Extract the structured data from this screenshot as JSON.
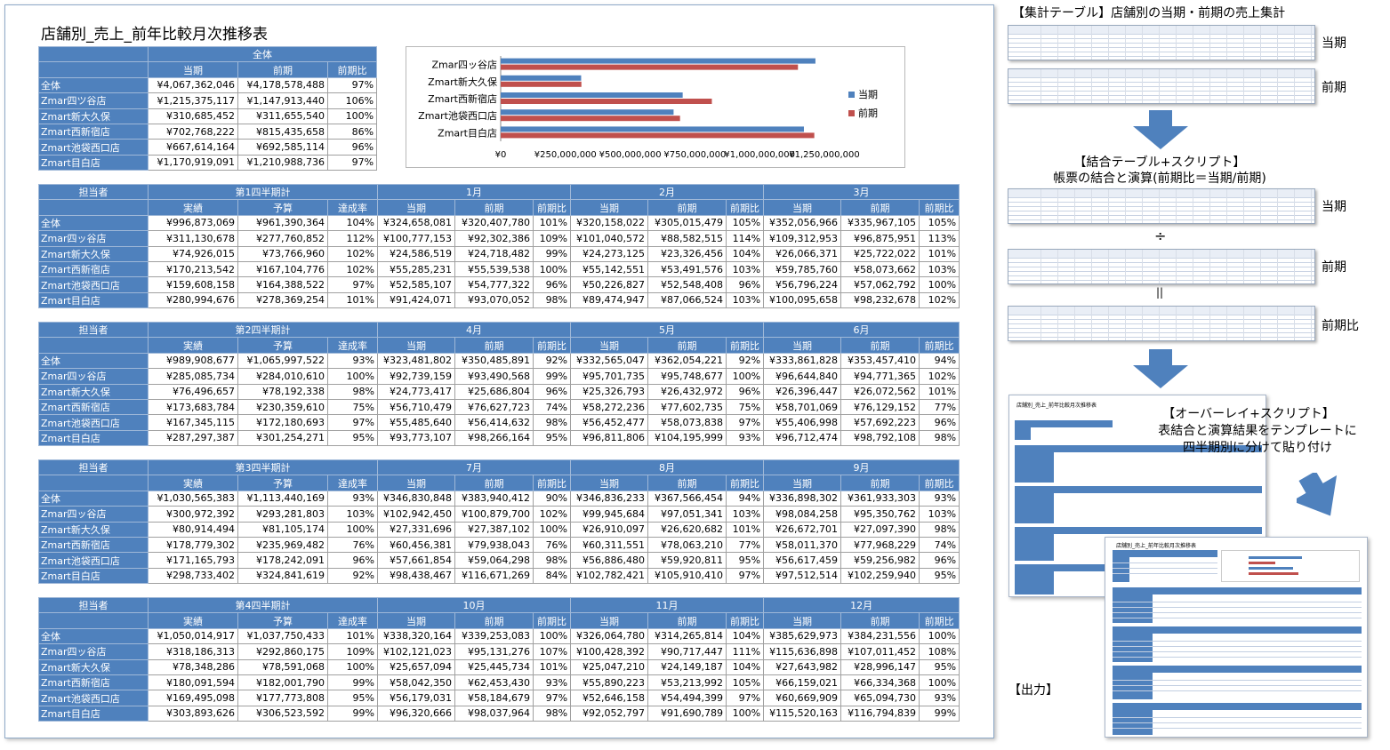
{
  "report_title": "店舗別_売上_前年比較月次推移表",
  "summary_table": {
    "group_header": "全体",
    "columns": [
      "当期",
      "前期",
      "前期比"
    ],
    "rows": [
      {
        "label": "全体",
        "cur": "¥4,067,362,046",
        "prev": "¥4,178,578,488",
        "ratio": "97%"
      },
      {
        "label": "Zmar四ツ谷店",
        "cur": "¥1,215,375,117",
        "prev": "¥1,147,913,440",
        "ratio": "106%"
      },
      {
        "label": "Zmart新大久保",
        "cur": "¥310,685,452",
        "prev": "¥311,655,540",
        "ratio": "100%"
      },
      {
        "label": "Zmart西新宿店",
        "cur": "¥702,768,222",
        "prev": "¥815,435,658",
        "ratio": "86%"
      },
      {
        "label": "Zmart池袋西口店",
        "cur": "¥667,614,164",
        "prev": "¥692,585,114",
        "ratio": "96%"
      },
      {
        "label": "Zmart目白店",
        "cur": "¥1,170,919,091",
        "prev": "¥1,210,988,736",
        "ratio": "97%"
      }
    ]
  },
  "chart_data": {
    "type": "bar",
    "orientation": "horizontal",
    "categories": [
      "Zmar四ッ谷店",
      "Zmart新大久保",
      "Zmart西新宿店",
      "Zmart池袋西口店",
      "Zmart目白店"
    ],
    "series": [
      {
        "name": "当期",
        "color": "#4f81bd",
        "values": [
          1215375117,
          310685452,
          702768222,
          667614164,
          1170919091
        ]
      },
      {
        "name": "前期",
        "color": "#c0504d",
        "values": [
          1147913440,
          311655540,
          815435658,
          692585114,
          1210988736
        ]
      }
    ],
    "x_tick_labels": [
      "¥0",
      "¥250,000,000",
      "¥500,000,000",
      "¥750,000,000",
      "¥1,000,000,000",
      "¥1,250,000,000"
    ],
    "xlim": [
      0,
      1250000000
    ],
    "legend_position": "right",
    "title": "",
    "xlabel": "",
    "ylabel": ""
  },
  "quarter_tables": [
    {
      "corner": "担当者",
      "quarter_title": "第1四半期計",
      "sub_cols": [
        "実績",
        "予算",
        "達成率"
      ],
      "months": [
        "1月",
        "2月",
        "3月"
      ],
      "month_cols": [
        "当期",
        "前期",
        "前期比"
      ],
      "rows": [
        {
          "label": "全体",
          "vals": [
            "¥996,873,069",
            "¥961,390,364",
            "104%",
            "¥324,658,081",
            "¥320,407,780",
            "101%",
            "¥320,158,022",
            "¥305,015,479",
            "105%",
            "¥352,056,966",
            "¥335,967,105",
            "105%"
          ]
        },
        {
          "label": "Zmar四ッ谷店",
          "vals": [
            "¥311,130,678",
            "¥277,760,852",
            "112%",
            "¥100,777,153",
            "¥92,302,386",
            "109%",
            "¥101,040,572",
            "¥88,582,515",
            "114%",
            "¥109,312,953",
            "¥96,875,951",
            "113%"
          ]
        },
        {
          "label": "Zmart新大久保",
          "vals": [
            "¥74,926,015",
            "¥73,766,960",
            "102%",
            "¥24,586,519",
            "¥24,718,482",
            "99%",
            "¥24,273,125",
            "¥23,326,456",
            "104%",
            "¥26,066,371",
            "¥25,722,022",
            "101%"
          ]
        },
        {
          "label": "Zmart西新宿店",
          "vals": [
            "¥170,213,542",
            "¥167,104,776",
            "102%",
            "¥55,285,231",
            "¥55,539,538",
            "100%",
            "¥55,142,551",
            "¥53,491,576",
            "103%",
            "¥59,785,760",
            "¥58,073,662",
            "103%"
          ]
        },
        {
          "label": "Zmart池袋西口店",
          "vals": [
            "¥159,608,158",
            "¥164,388,522",
            "97%",
            "¥52,585,107",
            "¥54,777,322",
            "96%",
            "¥50,226,827",
            "¥52,548,408",
            "96%",
            "¥56,796,224",
            "¥57,062,792",
            "100%"
          ]
        },
        {
          "label": "Zmart目白店",
          "vals": [
            "¥280,994,676",
            "¥278,369,254",
            "101%",
            "¥91,424,071",
            "¥93,070,052",
            "98%",
            "¥89,474,947",
            "¥87,066,524",
            "103%",
            "¥100,095,658",
            "¥98,232,678",
            "102%"
          ]
        }
      ]
    },
    {
      "corner": "担当者",
      "quarter_title": "第2四半期計",
      "sub_cols": [
        "実績",
        "予算",
        "達成率"
      ],
      "months": [
        "4月",
        "5月",
        "6月"
      ],
      "month_cols": [
        "当期",
        "前期",
        "前期比"
      ],
      "rows": [
        {
          "label": "全体",
          "vals": [
            "¥989,908,677",
            "¥1,065,997,522",
            "93%",
            "¥323,481,802",
            "¥350,485,891",
            "92%",
            "¥332,565,047",
            "¥362,054,221",
            "92%",
            "¥333,861,828",
            "¥353,457,410",
            "94%"
          ]
        },
        {
          "label": "Zmar四ッ谷店",
          "vals": [
            "¥285,085,734",
            "¥284,010,610",
            "100%",
            "¥92,739,159",
            "¥93,490,568",
            "99%",
            "¥95,701,735",
            "¥95,748,677",
            "100%",
            "¥96,644,840",
            "¥94,771,365",
            "102%"
          ]
        },
        {
          "label": "Zmart新大久保",
          "vals": [
            "¥76,496,657",
            "¥78,192,338",
            "98%",
            "¥24,773,417",
            "¥25,686,804",
            "96%",
            "¥25,326,793",
            "¥26,432,972",
            "96%",
            "¥26,396,447",
            "¥26,072,562",
            "101%"
          ]
        },
        {
          "label": "Zmart西新宿店",
          "vals": [
            "¥173,683,784",
            "¥230,359,610",
            "75%",
            "¥56,710,479",
            "¥76,627,723",
            "74%",
            "¥58,272,236",
            "¥77,602,735",
            "75%",
            "¥58,701,069",
            "¥76,129,152",
            "77%"
          ]
        },
        {
          "label": "Zmart池袋西口店",
          "vals": [
            "¥167,345,115",
            "¥172,180,693",
            "97%",
            "¥55,485,640",
            "¥56,414,632",
            "98%",
            "¥56,452,477",
            "¥58,073,838",
            "97%",
            "¥55,406,998",
            "¥57,692,223",
            "96%"
          ]
        },
        {
          "label": "Zmart目白店",
          "vals": [
            "¥287,297,387",
            "¥301,254,271",
            "95%",
            "¥93,773,107",
            "¥98,266,164",
            "95%",
            "¥96,811,806",
            "¥104,195,999",
            "93%",
            "¥96,712,474",
            "¥98,792,108",
            "98%"
          ]
        }
      ]
    },
    {
      "corner": "担当者",
      "quarter_title": "第3四半期計",
      "sub_cols": [
        "実績",
        "予算",
        "達成率"
      ],
      "months": [
        "7月",
        "8月",
        "9月"
      ],
      "month_cols": [
        "当期",
        "前期",
        "前期比"
      ],
      "rows": [
        {
          "label": "全体",
          "vals": [
            "¥1,030,565,383",
            "¥1,113,440,169",
            "93%",
            "¥346,830,848",
            "¥383,940,412",
            "90%",
            "¥346,836,233",
            "¥367,566,454",
            "94%",
            "¥336,898,302",
            "¥361,933,303",
            "93%"
          ]
        },
        {
          "label": "Zmar四ッ谷店",
          "vals": [
            "¥300,972,392",
            "¥293,281,803",
            "103%",
            "¥102,942,450",
            "¥100,879,700",
            "102%",
            "¥99,945,684",
            "¥97,051,341",
            "103%",
            "¥98,084,258",
            "¥95,350,762",
            "103%"
          ]
        },
        {
          "label": "Zmart新大久保",
          "vals": [
            "¥80,914,494",
            "¥81,105,174",
            "100%",
            "¥27,331,696",
            "¥27,387,102",
            "100%",
            "¥26,910,097",
            "¥26,620,682",
            "101%",
            "¥26,672,701",
            "¥27,097,390",
            "98%"
          ]
        },
        {
          "label": "Zmart西新宿店",
          "vals": [
            "¥178,779,302",
            "¥235,969,482",
            "76%",
            "¥60,456,381",
            "¥79,938,043",
            "76%",
            "¥60,311,551",
            "¥78,063,210",
            "77%",
            "¥58,011,370",
            "¥77,968,229",
            "74%"
          ]
        },
        {
          "label": "Zmart池袋西口店",
          "vals": [
            "¥171,165,793",
            "¥178,242,091",
            "96%",
            "¥57,661,854",
            "¥59,064,298",
            "98%",
            "¥56,886,480",
            "¥59,920,811",
            "95%",
            "¥56,617,459",
            "¥59,256,982",
            "96%"
          ]
        },
        {
          "label": "Zmart目白店",
          "vals": [
            "¥298,733,402",
            "¥324,841,619",
            "92%",
            "¥98,438,467",
            "¥116,671,269",
            "84%",
            "¥102,782,421",
            "¥105,910,410",
            "97%",
            "¥97,512,514",
            "¥102,259,940",
            "95%"
          ]
        }
      ]
    },
    {
      "corner": "担当者",
      "quarter_title": "第4四半期計",
      "sub_cols": [
        "実績",
        "予算",
        "達成率"
      ],
      "months": [
        "10月",
        "11月",
        "12月"
      ],
      "month_cols": [
        "当期",
        "前期",
        "前期比"
      ],
      "rows": [
        {
          "label": "全体",
          "vals": [
            "¥1,050,014,917",
            "¥1,037,750,433",
            "101%",
            "¥338,320,164",
            "¥339,253,083",
            "100%",
            "¥326,064,780",
            "¥314,265,814",
            "104%",
            "¥385,629,973",
            "¥384,231,556",
            "100%"
          ]
        },
        {
          "label": "Zmar四ッ谷店",
          "vals": [
            "¥318,186,313",
            "¥292,860,175",
            "109%",
            "¥102,121,023",
            "¥95,131,276",
            "107%",
            "¥100,428,392",
            "¥90,717,447",
            "111%",
            "¥115,636,898",
            "¥107,011,452",
            "108%"
          ]
        },
        {
          "label": "Zmart新大久保",
          "vals": [
            "¥78,348,286",
            "¥78,591,068",
            "100%",
            "¥25,657,094",
            "¥25,445,734",
            "101%",
            "¥25,047,210",
            "¥24,149,187",
            "104%",
            "¥27,643,982",
            "¥28,996,147",
            "95%"
          ]
        },
        {
          "label": "Zmart西新宿店",
          "vals": [
            "¥180,091,594",
            "¥182,001,790",
            "99%",
            "¥58,042,350",
            "¥62,453,430",
            "93%",
            "¥55,890,223",
            "¥53,213,992",
            "105%",
            "¥66,159,021",
            "¥66,334,368",
            "100%"
          ]
        },
        {
          "label": "Zmart池袋西口店",
          "vals": [
            "¥169,495,098",
            "¥177,773,808",
            "95%",
            "¥56,179,031",
            "¥58,184,679",
            "97%",
            "¥52,646,158",
            "¥54,494,399",
            "97%",
            "¥60,669,909",
            "¥65,094,730",
            "93%"
          ]
        },
        {
          "label": "Zmart目白店",
          "vals": [
            "¥303,893,626",
            "¥306,523,592",
            "99%",
            "¥96,320,666",
            "¥98,037,964",
            "98%",
            "¥92,052,797",
            "¥91,690,789",
            "100%",
            "¥115,520,163",
            "¥116,794,839",
            "99%"
          ]
        }
      ]
    }
  ],
  "flow": {
    "step1_title": "【集計テーブル】店舗別の当期・前期の売上集計",
    "label_current": "当期",
    "label_previous": "前期",
    "step2_title": "【結合テーブル+スクリプト】",
    "step2_desc": "帳票の結合と演算(前期比＝当期/前期)",
    "divide_sign": "÷",
    "equals_sign": "||",
    "label_ratio": "前期比",
    "step3_title": "【オーバーレイ+スクリプト】",
    "step3_desc1": "表結合と演算結果をテンプレートに",
    "step3_desc2": "四半期別に分けて貼り付け",
    "output_label": "【出力】",
    "arrow_color": "#4f81bd"
  }
}
